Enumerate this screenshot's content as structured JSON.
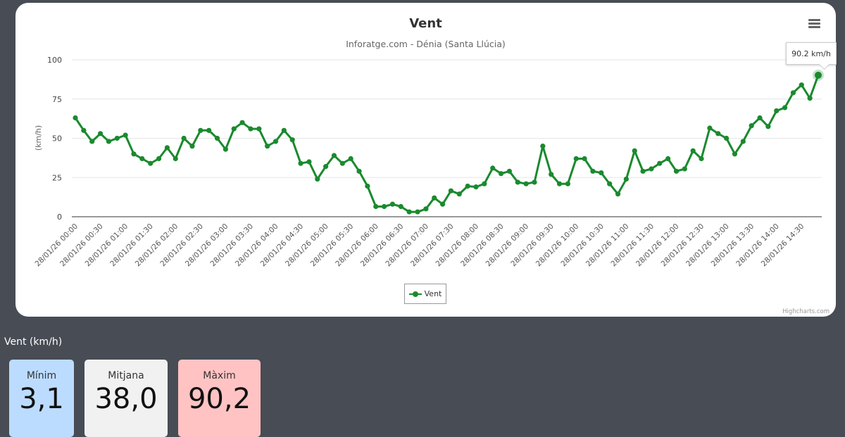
{
  "chart": {
    "title": "Vent",
    "subtitle": "Inforatge.com - Dénia (Santa Llúcia)",
    "menu_icon": "hamburger-menu-icon",
    "credits": "Highcharts.com",
    "tooltip": "90.2 km/h",
    "legend_label": "Vent",
    "line_color": "#1a8a2e"
  },
  "chart_data": {
    "type": "line",
    "title": "Vent",
    "subtitle": "Inforatge.com - Dénia (Santa Llúcia)",
    "xlabel": "",
    "ylabel": "(km/h)",
    "ylim": [
      0,
      100
    ],
    "yticks": [
      0,
      25,
      50,
      75,
      100
    ],
    "grid": true,
    "legend_position": "bottom-center",
    "x_tick_labels": [
      "28/01/26 00:00",
      "28/01/26 00:30",
      "28/01/26 01:00",
      "28/01/26 01:30",
      "28/01/26 02:00",
      "28/01/26 02:30",
      "28/01/26 03:00",
      "28/01/26 03:30",
      "28/01/26 04:00",
      "28/01/26 04:30",
      "28/01/26 05:00",
      "28/01/26 05:30",
      "28/01/26 06:00",
      "28/01/26 06:30",
      "28/01/26 07:00",
      "28/01/26 07:30",
      "28/01/26 08:00",
      "28/01/26 08:30",
      "28/01/26 09:00",
      "28/01/26 09:30",
      "28/01/26 10:00",
      "28/01/26 10:30",
      "28/01/26 11:00",
      "28/01/26 11:30",
      "28/01/26 12:00",
      "28/01/26 12:30",
      "28/01/26 13:00",
      "28/01/26 13:30",
      "28/01/26 14:00",
      "28/01/26 14:30"
    ],
    "series": [
      {
        "name": "Vent",
        "values": [
          63,
          55,
          48,
          53,
          48,
          50,
          52,
          40,
          37,
          34,
          37,
          44,
          37,
          50,
          45,
          55,
          55,
          50,
          43,
          56,
          60,
          56,
          56,
          45,
          48,
          55,
          49,
          34,
          35,
          24,
          32,
          39,
          34,
          37,
          29,
          19.5,
          6.5,
          6.5,
          8,
          6.5,
          3.1,
          3.1,
          5,
          12,
          8,
          16.5,
          14.5,
          19.5,
          19,
          21,
          31,
          27.5,
          29,
          22,
          21,
          22,
          45,
          27,
          21,
          21,
          37,
          37,
          29,
          28,
          21,
          14.5,
          24,
          42,
          29,
          30.5,
          34,
          37,
          29,
          30.5,
          42,
          37,
          56.5,
          53,
          50,
          40,
          48,
          58,
          63,
          57.5,
          67.5,
          69.5,
          79,
          84,
          75.5,
          90.2
        ]
      }
    ]
  },
  "stats": {
    "heading": "Vent (km/h)",
    "min_label": "Mínim",
    "min_value": "3,1",
    "avg_label": "Mitjana",
    "avg_value": "38,0",
    "max_label": "Màxim",
    "max_value": "90,2"
  }
}
